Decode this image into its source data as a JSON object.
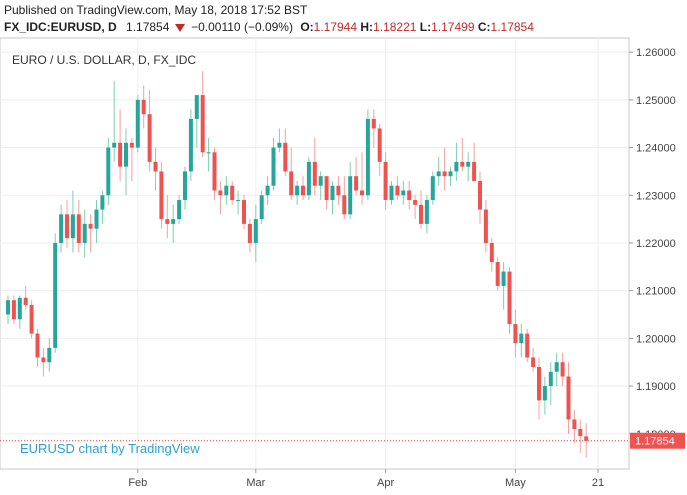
{
  "header": {
    "published": "Published on TradingView.com, May 18, 2018 17:52 BST",
    "symbol": "FX_IDC:EURUSD, D",
    "last": "1.17854",
    "change": "−0.00110 (−0.09%)",
    "open_label": "O:",
    "open": "1.17944",
    "high_label": "H:",
    "high": "1.18221",
    "low_label": "L:",
    "low": "1.17499",
    "close_label": "C:",
    "close": "1.17854"
  },
  "chart_title": "EURO / U.S. DOLLAR, D, FX_IDC",
  "watermark": "EURUSD chart by TradingView",
  "chart_data": {
    "type": "candlestick",
    "title": "EURO / U.S. DOLLAR, D, FX_IDC",
    "ylim": [
      1.1745,
      1.2615
    ],
    "yticks": [
      "1.26000",
      "1.25000",
      "1.24000",
      "1.23000",
      "1.22000",
      "1.21000",
      "1.20000",
      "1.19000",
      "1.18000"
    ],
    "ytick_values": [
      1.26,
      1.25,
      1.24,
      1.23,
      1.22,
      1.21,
      1.2,
      1.19,
      1.18
    ],
    "xticks": [
      {
        "label": "Feb",
        "index": 22
      },
      {
        "label": "Mar",
        "index": 42
      },
      {
        "label": "Apr",
        "index": 64
      },
      {
        "label": "May",
        "index": 86
      },
      {
        "label": "21",
        "index": 100
      }
    ],
    "last_price": 1.17854,
    "last_price_label": "1.17854",
    "colors": {
      "up": "#26a69a",
      "down": "#ef5350",
      "up_wick": "#7fcfb0",
      "down_wick": "#f4a0a0"
    },
    "candles": [
      [
        1.205,
        1.209,
        1.203,
        1.208
      ],
      [
        1.208,
        1.209,
        1.203,
        1.204
      ],
      [
        1.204,
        1.209,
        1.202,
        1.2085
      ],
      [
        1.2085,
        1.211,
        1.206,
        1.207
      ],
      [
        1.207,
        1.208,
        1.2,
        1.201
      ],
      [
        1.201,
        1.202,
        1.194,
        1.196
      ],
      [
        1.196,
        1.198,
        1.192,
        1.195
      ],
      [
        1.195,
        1.2,
        1.193,
        1.198
      ],
      [
        1.198,
        1.222,
        1.197,
        1.22
      ],
      [
        1.22,
        1.228,
        1.218,
        1.226
      ],
      [
        1.226,
        1.229,
        1.219,
        1.221
      ],
      [
        1.221,
        1.231,
        1.218,
        1.226
      ],
      [
        1.226,
        1.229,
        1.218,
        1.22
      ],
      [
        1.22,
        1.227,
        1.217,
        1.224
      ],
      [
        1.224,
        1.226,
        1.218,
        1.223
      ],
      [
        1.223,
        1.229,
        1.22,
        1.227
      ],
      [
        1.227,
        1.231,
        1.224,
        1.23
      ],
      [
        1.23,
        1.242,
        1.228,
        1.24
      ],
      [
        1.24,
        1.254,
        1.237,
        1.241
      ],
      [
        1.241,
        1.248,
        1.233,
        1.236
      ],
      [
        1.236,
        1.244,
        1.23,
        1.241
      ],
      [
        1.241,
        1.242,
        1.233,
        1.24
      ],
      [
        1.24,
        1.251,
        1.239,
        1.25
      ],
      [
        1.25,
        1.253,
        1.244,
        1.247
      ],
      [
        1.247,
        1.252,
        1.235,
        1.237
      ],
      [
        1.237,
        1.24,
        1.231,
        1.235
      ],
      [
        1.235,
        1.237,
        1.223,
        1.225
      ],
      [
        1.225,
        1.23,
        1.221,
        1.224
      ],
      [
        1.224,
        1.228,
        1.22,
        1.225
      ],
      [
        1.225,
        1.23,
        1.224,
        1.229
      ],
      [
        1.229,
        1.236,
        1.227,
        1.235
      ],
      [
        1.235,
        1.248,
        1.233,
        1.246
      ],
      [
        1.246,
        1.251,
        1.24,
        1.251
      ],
      [
        1.251,
        1.256,
        1.238,
        1.239
      ],
      [
        1.239,
        1.242,
        1.235,
        1.239
      ],
      [
        1.239,
        1.24,
        1.229,
        1.231
      ],
      [
        1.231,
        1.233,
        1.226,
        1.23
      ],
      [
        1.23,
        1.234,
        1.228,
        1.232
      ],
      [
        1.232,
        1.233,
        1.228,
        1.229
      ],
      [
        1.229,
        1.231,
        1.226,
        1.229
      ],
      [
        1.229,
        1.23,
        1.223,
        1.224
      ],
      [
        1.224,
        1.225,
        1.218,
        1.22
      ],
      [
        1.22,
        1.228,
        1.216,
        1.225
      ],
      [
        1.225,
        1.231,
        1.224,
        1.23
      ],
      [
        1.23,
        1.234,
        1.228,
        1.232
      ],
      [
        1.232,
        1.242,
        1.231,
        1.24
      ],
      [
        1.24,
        1.244,
        1.239,
        1.241
      ],
      [
        1.241,
        1.244,
        1.234,
        1.235
      ],
      [
        1.235,
        1.24,
        1.229,
        1.23
      ],
      [
        1.23,
        1.233,
        1.228,
        1.232
      ],
      [
        1.232,
        1.234,
        1.229,
        1.23
      ],
      [
        1.23,
        1.238,
        1.229,
        1.237
      ],
      [
        1.237,
        1.242,
        1.23,
        1.232
      ],
      [
        1.232,
        1.235,
        1.229,
        1.234
      ],
      [
        1.234,
        1.234,
        1.227,
        1.229
      ],
      [
        1.229,
        1.233,
        1.226,
        1.232
      ],
      [
        1.232,
        1.234,
        1.228,
        1.23
      ],
      [
        1.23,
        1.234,
        1.225,
        1.226
      ],
      [
        1.226,
        1.237,
        1.225,
        1.234
      ],
      [
        1.234,
        1.238,
        1.23,
        1.231
      ],
      [
        1.231,
        1.239,
        1.228,
        1.23
      ],
      [
        1.23,
        1.248,
        1.229,
        1.246
      ],
      [
        1.246,
        1.248,
        1.24,
        1.244
      ],
      [
        1.244,
        1.245,
        1.234,
        1.237
      ],
      [
        1.237,
        1.239,
        1.227,
        1.229
      ],
      [
        1.229,
        1.233,
        1.228,
        1.232
      ],
      [
        1.232,
        1.234,
        1.229,
        1.23
      ],
      [
        1.23,
        1.233,
        1.228,
        1.231
      ],
      [
        1.231,
        1.233,
        1.227,
        1.229
      ],
      [
        1.229,
        1.23,
        1.225,
        1.228
      ],
      [
        1.228,
        1.231,
        1.223,
        1.224
      ],
      [
        1.224,
        1.23,
        1.222,
        1.229
      ],
      [
        1.229,
        1.235,
        1.228,
        1.234
      ],
      [
        1.234,
        1.238,
        1.232,
        1.235
      ],
      [
        1.235,
        1.24,
        1.231,
        1.234
      ],
      [
        1.234,
        1.236,
        1.232,
        1.235
      ],
      [
        1.235,
        1.241,
        1.233,
        1.237
      ],
      [
        1.237,
        1.242,
        1.235,
        1.236
      ],
      [
        1.236,
        1.239,
        1.233,
        1.237
      ],
      [
        1.237,
        1.241,
        1.233,
        1.233
      ],
      [
        1.233,
        1.235,
        1.224,
        1.227
      ],
      [
        1.227,
        1.229,
        1.218,
        1.22
      ],
      [
        1.22,
        1.221,
        1.214,
        1.216
      ],
      [
        1.216,
        1.217,
        1.21,
        1.211
      ],
      [
        1.211,
        1.216,
        1.206,
        1.214
      ],
      [
        1.214,
        1.215,
        1.201,
        1.203
      ],
      [
        1.203,
        1.206,
        1.196,
        1.199
      ],
      [
        1.199,
        1.203,
        1.196,
        1.201
      ],
      [
        1.201,
        1.202,
        1.195,
        1.196
      ],
      [
        1.196,
        1.198,
        1.193,
        1.194
      ],
      [
        1.194,
        1.196,
        1.183,
        1.187
      ],
      [
        1.187,
        1.192,
        1.184,
        1.19
      ],
      [
        1.19,
        1.195,
        1.186,
        1.193
      ],
      [
        1.193,
        1.197,
        1.19,
        1.195
      ],
      [
        1.195,
        1.197,
        1.19,
        1.192
      ],
      [
        1.192,
        1.195,
        1.18,
        1.183
      ],
      [
        1.183,
        1.185,
        1.178,
        1.181
      ],
      [
        1.181,
        1.183,
        1.176,
        1.1795
      ],
      [
        1.17944,
        1.18221,
        1.17499,
        1.17854
      ]
    ]
  }
}
